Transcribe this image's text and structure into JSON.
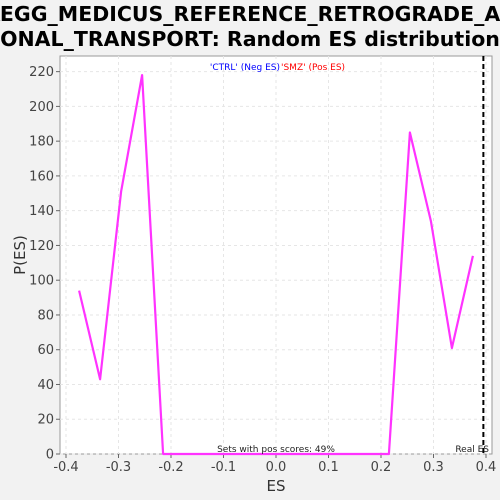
{
  "chart_data": {
    "type": "line",
    "title_line1": "KEGG_MEDICUS_REFERENCE_RETROGRADE_AX",
    "title_line2": "ONAL_TRANSPORT: Random ES distribution",
    "xlabel": "ES",
    "ylabel": "P(ES)",
    "xlim": [
      -0.4,
      0.4
    ],
    "ylim": [
      0,
      230
    ],
    "x_ticks": [
      -0.4,
      -0.3,
      -0.2,
      -0.1,
      0.0,
      0.1,
      0.2,
      0.3,
      0.4
    ],
    "x_tick_labels": [
      "-0.4",
      "-0.3",
      "-0.2",
      "-0.1",
      "0.0",
      "0.1",
      "0.2",
      "0.3",
      "0.4"
    ],
    "y_ticks": [
      0,
      20,
      40,
      60,
      80,
      100,
      120,
      140,
      160,
      180,
      200,
      220
    ],
    "y_tick_labels": [
      "0",
      "20",
      "40",
      "60",
      "80",
      "100",
      "120",
      "140",
      "160",
      "180",
      "200",
      "220"
    ],
    "grid": true,
    "legend_placement": "top-center",
    "legend": [
      {
        "label": "'CTRL' (Neg ES)",
        "color": "#0000ff"
      },
      {
        "label": "'SMZ' (Pos ES)",
        "color": "#ff0000"
      }
    ],
    "series": [
      {
        "color": "#ff33ff",
        "x": [
          -0.375,
          -0.335,
          -0.295,
          -0.255,
          -0.215,
          -0.175,
          0.0,
          0.175,
          0.215,
          0.255,
          0.295,
          0.335,
          0.375
        ],
        "values": [
          94,
          43,
          151,
          218,
          0,
          0,
          0,
          0,
          0,
          185,
          134,
          61,
          114
        ]
      }
    ],
    "real_es": {
      "x": 0.395,
      "label": "Real ES"
    },
    "annotation": "Sets with pos scores: 49%"
  }
}
